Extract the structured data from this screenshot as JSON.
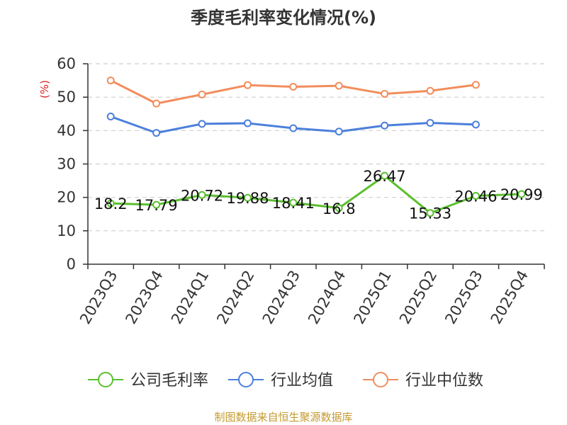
{
  "chart_data": {
    "type": "line",
    "title": "季度毛利率变化情况(%)",
    "ylabel": "(%)",
    "xlabel": "",
    "ylim": [
      0,
      60
    ],
    "yticks": [
      0,
      10,
      20,
      30,
      40,
      50,
      60
    ],
    "grid": true,
    "legend_position": "bottom",
    "categories": [
      "2023Q3",
      "2023Q4",
      "2024Q1",
      "2024Q2",
      "2024Q3",
      "2024Q4",
      "2025Q1",
      "2025Q2",
      "2025Q3",
      "2025Q4"
    ],
    "series": [
      {
        "name": "公司毛利率",
        "color": "#5bbf2f",
        "values": [
          18.2,
          17.79,
          20.72,
          19.88,
          18.41,
          16.8,
          26.47,
          15.33,
          20.46,
          20.99
        ],
        "labels": [
          "18.2",
          "17.79",
          "20.72",
          "19.88",
          "18.41",
          "16.8",
          "26.47",
          "15.33",
          "20.46",
          "20.99"
        ]
      },
      {
        "name": "行业均值",
        "color": "#4c7fdb",
        "values": [
          44.2,
          39.3,
          42.0,
          42.2,
          40.7,
          39.7,
          41.5,
          42.3,
          41.8,
          null
        ]
      },
      {
        "name": "行业中位数",
        "color": "#f28d5c",
        "values": [
          55.0,
          48.1,
          50.8,
          53.6,
          53.1,
          53.4,
          51.0,
          51.9,
          53.7,
          null
        ]
      }
    ]
  },
  "unit_color": "#e02020",
  "source": {
    "text": "制图数据来自恒生聚源数据库",
    "color": "#c49a2e"
  }
}
